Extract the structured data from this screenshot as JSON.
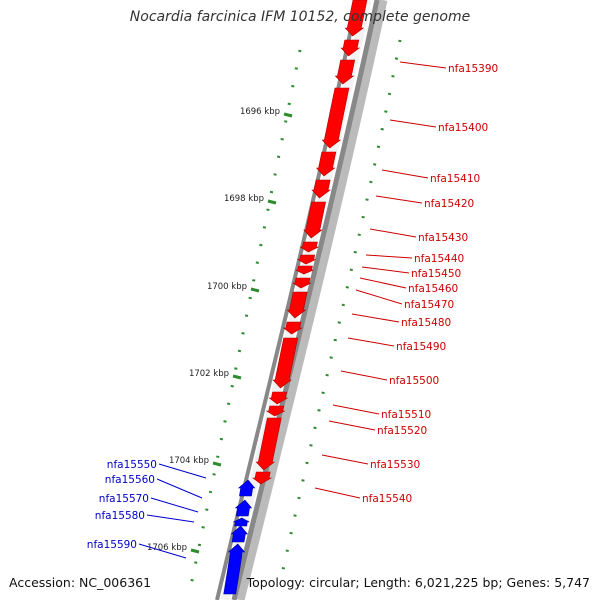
{
  "title": "Nocardia farcinica IFM 10152, complete genome",
  "accession": "Accession: NC_006361",
  "summary": "Topology: circular; Length: 6,021,225 bp; Genes: 5,747",
  "colors": {
    "forward_gene": "#ff0000",
    "reverse_gene": "#0000ff",
    "forward_label": "#cc0000",
    "reverse_label": "#0000cc",
    "tick": "#2e8b2e",
    "backbone": "#888888"
  },
  "kbp_ticks": [
    "1696 kbp",
    "1698 kbp",
    "1700 kbp",
    "1702 kbp",
    "1704 kbp",
    "1706 kbp"
  ],
  "forward_gene_labels": [
    "nfa15390",
    "nfa15400",
    "nfa15410",
    "nfa15420",
    "nfa15430",
    "nfa15440",
    "nfa15450",
    "nfa15460",
    "nfa15470",
    "nfa15480",
    "nfa15490",
    "nfa15500",
    "nfa15510",
    "nfa15520",
    "nfa15530",
    "nfa15540"
  ],
  "reverse_gene_labels": [
    "nfa15550",
    "nfa15560",
    "nfa15570",
    "nfa15580",
    "nfa15590"
  ]
}
